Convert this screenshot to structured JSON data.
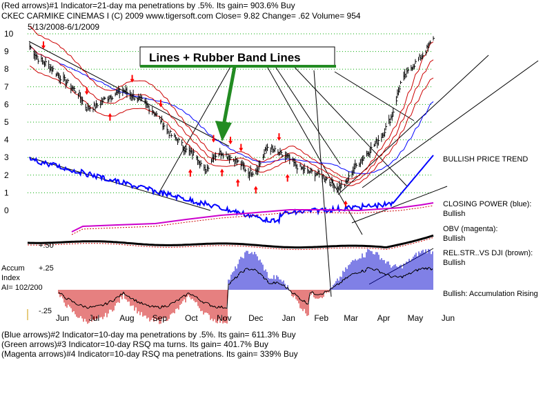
{
  "header": {
    "line1": "(Red arrows)#1 Indicator=21-day ma penetrations by .5%.  Its gain= 903.6% Buy",
    "line2": "CKEC       CARMIKE CINEMAS I        (C) 2009 www.tigersoft.com     Close=  9.82  Change= .62 Volume= 954",
    "date_range": "5/13/2008-6/1/2009"
  },
  "banner": "Lines + Rubber Band Lines",
  "footer": {
    "line1": "(Blue arrows)#2 Indicator=10-day ma penetrations by .5%.  Its gain= 611.3% Buy",
    "line2": "(Green arrows)#3 Indicator=10-day RSQ ma turns.  Its gain= 401.7% Buy",
    "line3": "(Magenta arrows)#4 Indicator=10-day RSQ ma penetrations.  Its gain= 339% Buy"
  },
  "right_labels": {
    "trend": "BULLISH PRICE TREND",
    "cp_title": "CLOSING POWER (blue):",
    "cp_value": "Bullish",
    "obv_title": "OBV (magenta):",
    "obv_value": "Bullish",
    "rs_title": "REL.STR..VS DJI (brown):",
    "rs_value": "Bullish",
    "accum": "Bullish: Accumulation Rising"
  },
  "accum_labels": {
    "title1": "Accum",
    "title2": "Index",
    "ai": "AI= 102/200",
    "t_50": "+.50",
    "t_25": "+.25",
    "t_m25": "-.25"
  },
  "colors": {
    "price_bars": "#000000",
    "ma_red": "#cc0000",
    "closing_power": "#0000ff",
    "obv": "#cc00cc",
    "rel_strength": "#660000",
    "accum_pos": "#0000cc",
    "accum_neg": "#cc0000",
    "banner_arrow": "#228b22",
    "grid": "#00aa00"
  },
  "chart_data": {
    "type": "line",
    "title": "CKEC CARMIKE CINEMAS I",
    "xlabel": "",
    "ylabel": "",
    "ylim": [
      0,
      10
    ],
    "x_ticks": [
      "Jun",
      "Jul",
      "Aug",
      "Sep",
      "Oct",
      "Nov",
      "Dec",
      "Jan",
      "Feb",
      "Mar",
      "Apr",
      "May",
      "Jun"
    ],
    "y_ticks": [
      "0",
      "1",
      "2",
      "3",
      "4",
      "5",
      "6",
      "7",
      "8",
      "9",
      "10"
    ],
    "price_close": [
      [
        "5/15/2008",
        9.3
      ],
      [
        "5/23/2008",
        8.6
      ],
      [
        "6/2/2008",
        8.2
      ],
      [
        "6/12/2008",
        7.6
      ],
      [
        "6/20/2008",
        7.2
      ],
      [
        "6/30/2008",
        6.6
      ],
      [
        "7/8/2008",
        5.8
      ],
      [
        "7/17/2008",
        5.9
      ],
      [
        "7/25/2008",
        6.3
      ],
      [
        "8/4/2008",
        6.6
      ],
      [
        "8/12/2008",
        6.8
      ],
      [
        "8/20/2008",
        6.5
      ],
      [
        "8/29/2008",
        6.2
      ],
      [
        "9/8/2008",
        5.7
      ],
      [
        "9/16/2008",
        5.1
      ],
      [
        "9/25/2008",
        4.3
      ],
      [
        "10/2/2008",
        4.0
      ],
      [
        "10/10/2008",
        3.4
      ],
      [
        "10/20/2008",
        3.1
      ],
      [
        "10/28/2008",
        2.2
      ],
      [
        "11/5/2008",
        3.1
      ],
      [
        "11/13/2008",
        3.3
      ],
      [
        "11/21/2008",
        3.0
      ],
      [
        "12/1/2008",
        2.6
      ],
      [
        "12/9/2008",
        2.1
      ],
      [
        "12/17/2008",
        2.4
      ],
      [
        "12/26/2008",
        3.6
      ],
      [
        "1/6/2009",
        3.2
      ],
      [
        "1/14/2009",
        3.0
      ],
      [
        "1/23/2009",
        2.5
      ],
      [
        "2/2/2009",
        2.2
      ],
      [
        "2/10/2009",
        2.1
      ],
      [
        "2/20/2009",
        1.8
      ],
      [
        "3/2/2009",
        1.3
      ],
      [
        "3/10/2009",
        1.5
      ],
      [
        "3/18/2009",
        2.4
      ],
      [
        "3/27/2009",
        3.0
      ],
      [
        "4/6/2009",
        3.7
      ],
      [
        "4/14/2009",
        4.3
      ],
      [
        "4/23/2009",
        5.4
      ],
      [
        "5/1/2009",
        7.2
      ],
      [
        "5/11/2009",
        8.1
      ],
      [
        "5/19/2009",
        8.6
      ],
      [
        "5/27/2009",
        9.2
      ],
      [
        "6/1/2009",
        9.82
      ]
    ],
    "annotations": [
      "Lines + Rubber Band Lines"
    ]
  }
}
